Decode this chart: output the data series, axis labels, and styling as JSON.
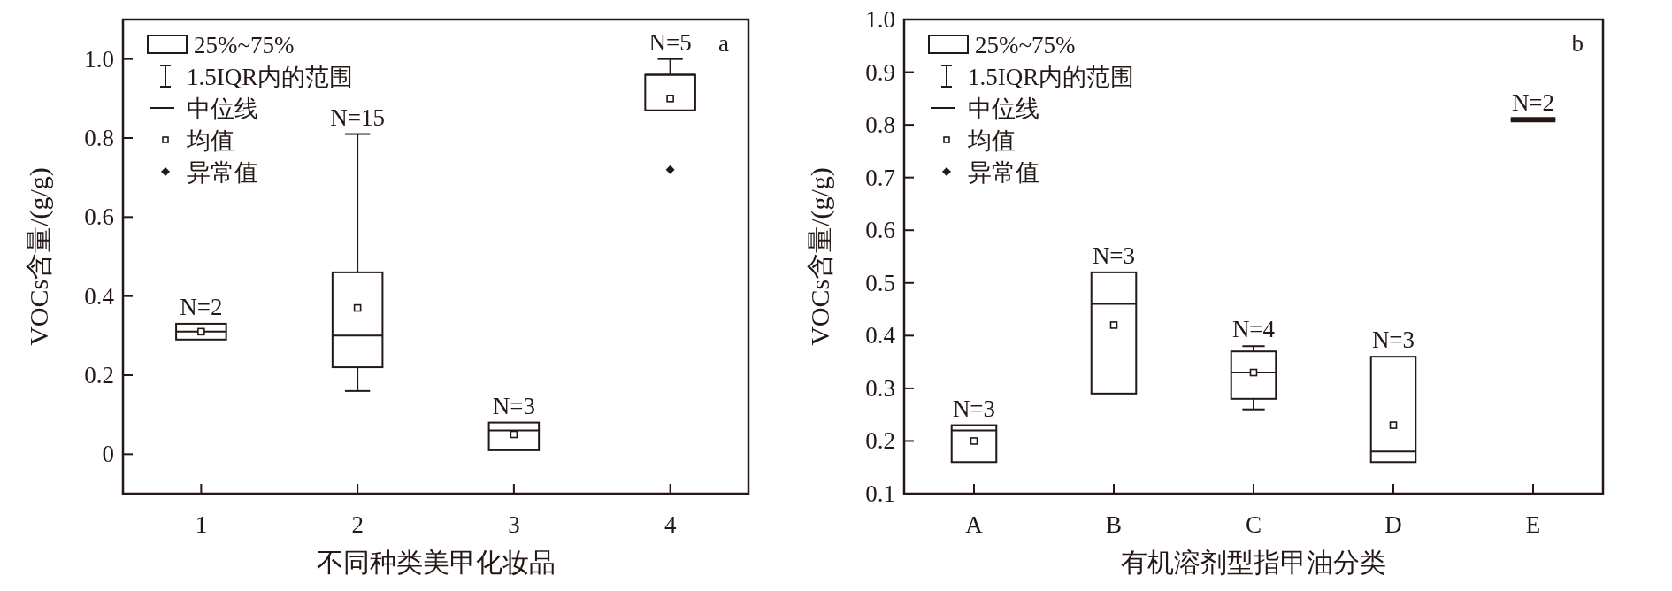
{
  "chart_data": [
    {
      "type": "box",
      "title": "a",
      "categories": [
        "1",
        "2",
        "3",
        "4"
      ],
      "xlabel": "不同种类美甲化妆品",
      "ylabel": "VOCs含量/(g/g)",
      "ylim": [
        -0.1,
        1.1
      ],
      "yticks": [
        0,
        0.2,
        0.4,
        0.6,
        0.8,
        {
          "value": 1,
          "label": "1.0"
        }
      ],
      "color": "#231815",
      "boxes": [
        {
          "low": 0.29,
          "q1": 0.29,
          "median": 0.31,
          "q3": 0.33,
          "high": 0.33,
          "mean": 0.31
        },
        {
          "low": 0.16,
          "q1": 0.22,
          "median": 0.3,
          "q3": 0.46,
          "high": 0.81,
          "mean": 0.37
        },
        {
          "low": 0.01,
          "q1": 0.01,
          "median": 0.06,
          "q3": 0.08,
          "high": 0.08,
          "mean": 0.05
        },
        {
          "low": 0.87,
          "q1": 0.87,
          "median": 0.96,
          "q3": 0.96,
          "high": 1.0,
          "mean": 0.9,
          "outliers": [
            0.72
          ]
        }
      ],
      "annotations": [
        {
          "text": "N=2",
          "x": "1",
          "y": 0.33
        },
        {
          "text": "N=15",
          "x": "2",
          "y": 0.81
        },
        {
          "text": "N=3",
          "x": "3",
          "y": 0.08
        },
        {
          "text": "N=5",
          "x": "4",
          "y": 1.0
        },
        "25%~75%",
        "1.5IQR内的范围",
        "中位线",
        "均值",
        "异常值"
      ]
    },
    {
      "type": "box",
      "title": "b",
      "categories": [
        "A",
        "B",
        "C",
        "D",
        "E"
      ],
      "xlabel": "有机溶剂型指甲油分类",
      "ylabel": "VOCs含量/(g/g)",
      "ylim": [
        0.1,
        1.0
      ],
      "yticks": [
        0.1,
        0.2,
        0.3,
        0.4,
        0.5,
        0.6,
        0.7,
        0.8,
        0.9,
        {
          "value": 1,
          "label": "1.0"
        }
      ],
      "color": "#231815",
      "boxes": [
        {
          "low": 0.16,
          "q1": 0.16,
          "median": 0.22,
          "q3": 0.23,
          "high": 0.23,
          "mean": 0.2
        },
        {
          "low": 0.29,
          "q1": 0.29,
          "median": 0.46,
          "q3": 0.52,
          "high": 0.52,
          "mean": 0.42
        },
        {
          "low": 0.26,
          "q1": 0.28,
          "median": 0.33,
          "q3": 0.37,
          "high": 0.38,
          "mean": 0.33
        },
        {
          "low": 0.16,
          "q1": 0.16,
          "median": 0.18,
          "q3": 0.36,
          "high": 0.36,
          "mean": 0.23
        },
        {
          "low": 0.81,
          "q1": 0.81,
          "median": 0.81,
          "q3": 0.81,
          "high": 0.81
        }
      ],
      "annotations": [
        {
          "text": "N=3",
          "x": "A",
          "y": 0.23
        },
        {
          "text": "N=3",
          "x": "B",
          "y": 0.52
        },
        {
          "text": "N=4",
          "x": "C",
          "y": 0.38
        },
        {
          "text": "N=3",
          "x": "D",
          "y": 0.36
        },
        {
          "text": "N=2",
          "x": "E",
          "y": 0.81
        },
        "25%~75%",
        "1.5IQR内的范围",
        "中位线",
        "均值",
        "异常值"
      ]
    }
  ]
}
